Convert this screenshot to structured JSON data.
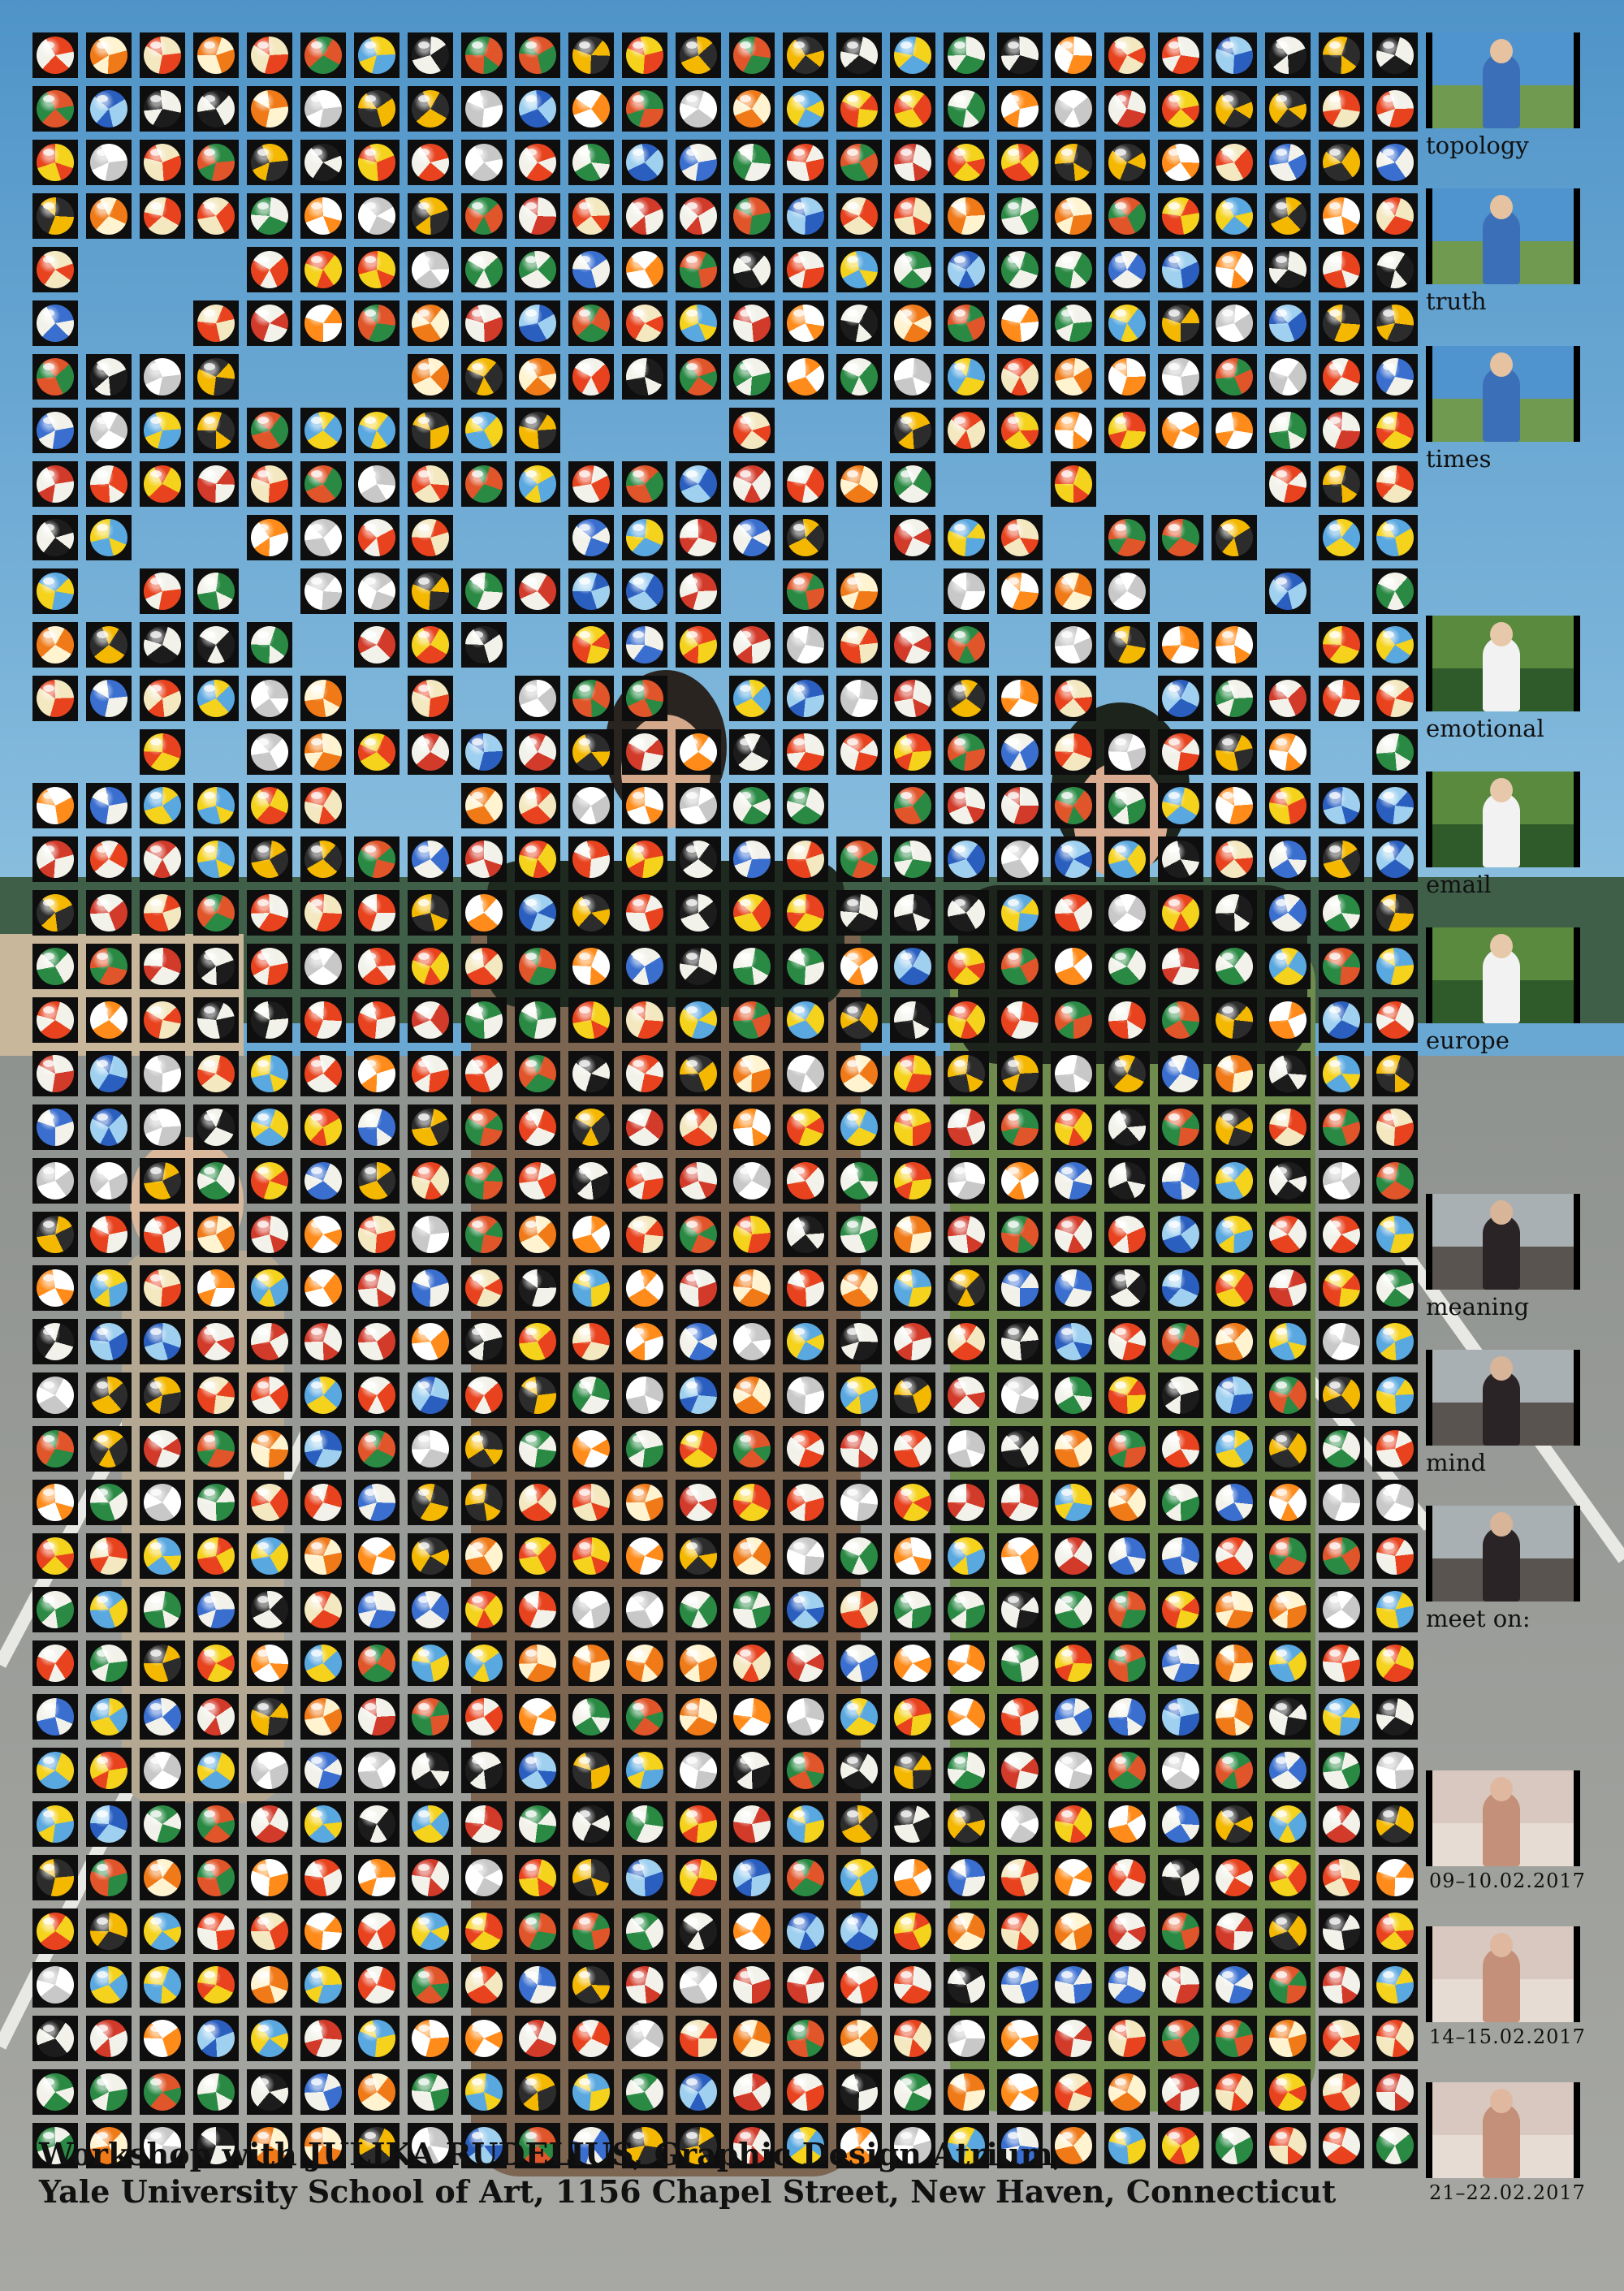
{
  "poster": {
    "side_items": [
      {
        "kind": "thumb",
        "scene": "woman-blue-sky"
      },
      {
        "kind": "word",
        "text": "topology"
      },
      {
        "kind": "thumb",
        "scene": "woman-blue-sky"
      },
      {
        "kind": "word",
        "text": "truth"
      },
      {
        "kind": "thumb",
        "scene": "woman-blue-sky"
      },
      {
        "kind": "word",
        "text": "times"
      },
      {
        "kind": "thumb",
        "scene": "woman-plants"
      },
      {
        "kind": "word",
        "text": "emotional"
      },
      {
        "kind": "thumb",
        "scene": "woman-plants"
      },
      {
        "kind": "word",
        "text": "email"
      },
      {
        "kind": "thumb",
        "scene": "woman-plants"
      },
      {
        "kind": "word",
        "text": "europe"
      },
      {
        "kind": "thumb",
        "scene": "two-girls"
      },
      {
        "kind": "word",
        "text": "meaning"
      },
      {
        "kind": "thumb",
        "scene": "two-girls"
      },
      {
        "kind": "word",
        "text": "mind"
      },
      {
        "kind": "thumb",
        "scene": "two-girls"
      },
      {
        "kind": "word",
        "text": "meet on:"
      },
      {
        "kind": "thumb",
        "scene": "seated-figure"
      },
      {
        "kind": "date",
        "text": "09–10.02.2017"
      },
      {
        "kind": "thumb",
        "scene": "seated-figure"
      },
      {
        "kind": "date",
        "text": "14–15.02.2017"
      },
      {
        "kind": "thumb",
        "scene": "seated-figure"
      },
      {
        "kind": "date",
        "text": "21–22.02.2017"
      }
    ],
    "footer": {
      "line1": "Workshop with JULIKA RUDELIUS, Graphic Design Atrium,",
      "line2": "Yale University School of Art, 1156 Chapel Street, New Haven, Connecticut"
    },
    "colors": {
      "sky": "#6aa8d4",
      "asphalt": "#9a9c98",
      "grid_line": "#0e0e0e",
      "text": "#111111"
    }
  }
}
